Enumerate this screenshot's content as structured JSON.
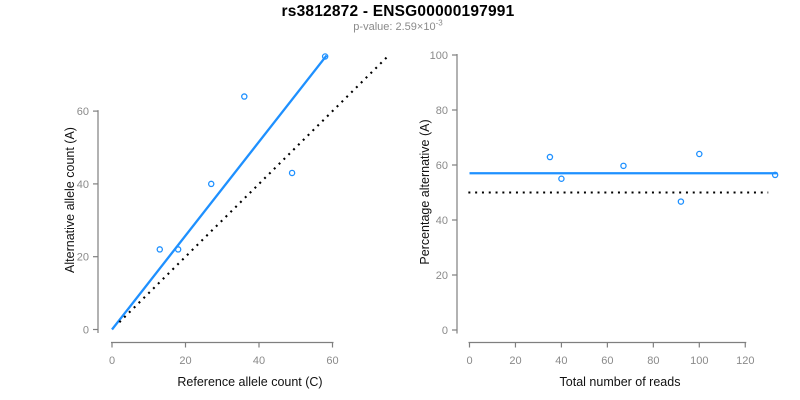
{
  "header": {
    "title": "rs3812872 - ENSG00000197991",
    "subtitle_prefix": "p-value: 2.59×10",
    "subtitle_exponent": "-3"
  },
  "colors": {
    "accent_blue": "#1E90FF",
    "axis_gray": "#7f7f7f",
    "tick_label_gray": "#8a8a8a",
    "axis_title_black": "#111111",
    "reference_black": "#000000"
  },
  "chart_data": [
    {
      "type": "scatter",
      "title": "rs3812872 - ENSG00000197991",
      "subtitle": "p-value: 2.59×10^-3",
      "xlabel": "Reference allele count (C)",
      "ylabel": "Alternative allele count (A)",
      "xticks": [
        0,
        20,
        40,
        60
      ],
      "yticks": [
        0,
        20,
        40,
        60
      ],
      "xlim": [
        0,
        75
      ],
      "ylim": [
        0,
        78
      ],
      "grid": false,
      "points": [
        [
          13,
          22
        ],
        [
          18,
          22
        ],
        [
          27,
          40
        ],
        [
          36,
          64
        ],
        [
          49,
          43
        ],
        [
          58,
          75
        ]
      ],
      "lines": [
        {
          "name": "fit-line",
          "style": "solid",
          "color": "#1E90FF",
          "x1": 0,
          "y1": 0,
          "x2": 58.4,
          "y2": 75.3
        },
        {
          "name": "identity-line",
          "style": "dotted",
          "color": "#000000",
          "x1": 2,
          "y1": 2,
          "x2": 75,
          "y2": 75
        }
      ]
    },
    {
      "type": "scatter",
      "xlabel": "Total number of reads",
      "ylabel": "Percentage alternative (A)",
      "xticks": [
        0,
        20,
        40,
        60,
        80,
        100,
        120
      ],
      "yticks": [
        0,
        20,
        40,
        60,
        80,
        100
      ],
      "xlim": [
        0,
        134
      ],
      "ylim": [
        0,
        100
      ],
      "grid": false,
      "points": [
        [
          35,
          62.9
        ],
        [
          40,
          55
        ],
        [
          67,
          59.7
        ],
        [
          92,
          46.7
        ],
        [
          100,
          64
        ],
        [
          133,
          56.4
        ]
      ],
      "lines": [
        {
          "name": "fit-line",
          "style": "solid",
          "color": "#1E90FF",
          "x1": 0,
          "y1": 57,
          "x2": 134,
          "y2": 57
        },
        {
          "name": "reference-line",
          "style": "dotted",
          "color": "#000000",
          "x1": -0.5,
          "y1": 50,
          "x2": 130,
          "y2": 50
        }
      ]
    }
  ]
}
